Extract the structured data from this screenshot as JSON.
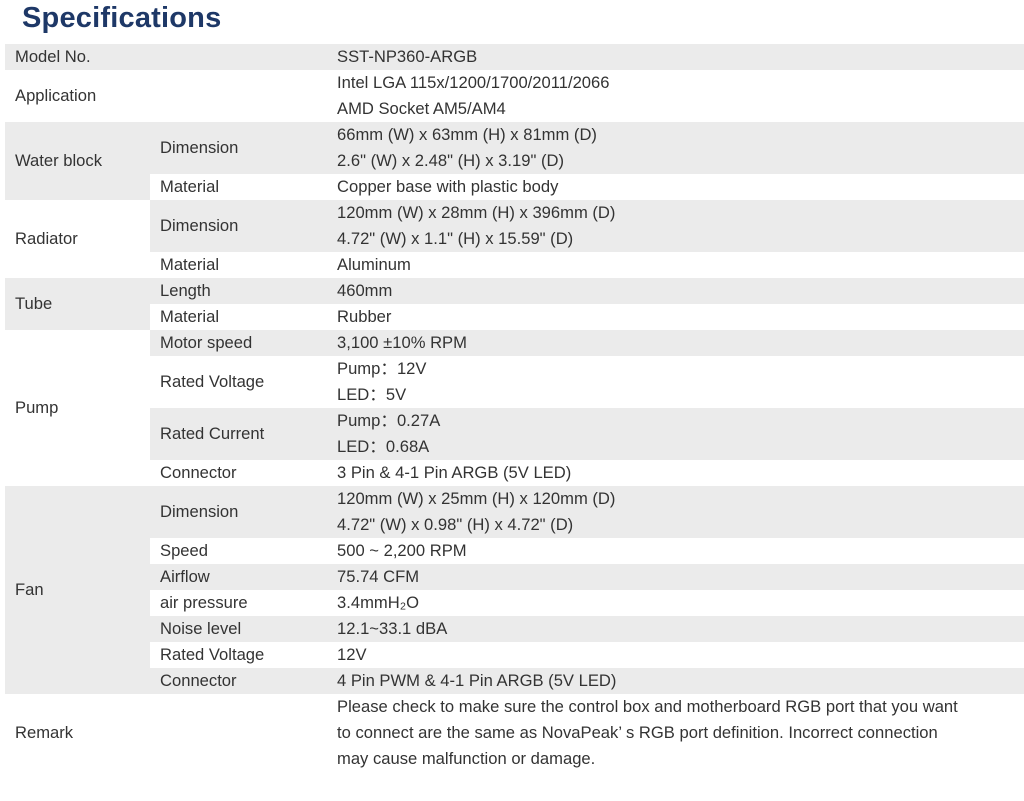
{
  "title": "Specifications",
  "colors": {
    "title": "#1e3867",
    "row_shade": "#ebebeb",
    "text": "#333333"
  },
  "groups": [
    {
      "label": "Model No.",
      "rows": [
        {
          "sub": "",
          "lines": [
            "SST-NP360-ARGB"
          ]
        }
      ]
    },
    {
      "label": "Application",
      "rows": [
        {
          "sub": "",
          "lines": [
            "Intel LGA 115x/1200/1700/2011/2066",
            "AMD Socket AM5/AM4"
          ]
        }
      ]
    },
    {
      "label": "Water block",
      "rows": [
        {
          "sub": "Dimension",
          "lines": [
            "66mm (W) x 63mm (H) x 81mm (D)",
            "2.6\" (W) x 2.48\" (H) x 3.19\" (D)"
          ]
        },
        {
          "sub": "Material",
          "lines": [
            "Copper base with plastic body"
          ]
        }
      ]
    },
    {
      "label": "Radiator",
      "rows": [
        {
          "sub": "Dimension",
          "lines": [
            "120mm (W) x 28mm (H) x 396mm (D)",
            "4.72\" (W) x 1.1\" (H) x 15.59\" (D)"
          ]
        },
        {
          "sub": "Material",
          "lines": [
            "Aluminum"
          ]
        }
      ]
    },
    {
      "label": "Tube",
      "rows": [
        {
          "sub": "Length",
          "lines": [
            "460mm"
          ]
        },
        {
          "sub": "Material",
          "lines": [
            "Rubber"
          ]
        }
      ]
    },
    {
      "label": "Pump",
      "rows": [
        {
          "sub": "Motor speed",
          "lines": [
            "3,100 ±10% RPM"
          ]
        },
        {
          "sub": "Rated Voltage",
          "lines": [
            "Pump：12V",
            "LED：5V"
          ]
        },
        {
          "sub": "Rated Current",
          "lines": [
            "Pump：0.27A",
            "LED：0.68A"
          ]
        },
        {
          "sub": "Connector",
          "lines": [
            "3 Pin & 4-1 Pin ARGB (5V LED)"
          ]
        }
      ]
    },
    {
      "label": "Fan",
      "rows": [
        {
          "sub": "Dimension",
          "lines": [
            "120mm (W) x 25mm (H) x 120mm (D)",
            "4.72\" (W) x 0.98\" (H) x 4.72\" (D)"
          ]
        },
        {
          "sub": "Speed",
          "lines": [
            "500 ~ 2,200 RPM"
          ]
        },
        {
          "sub": "Airflow",
          "lines": [
            "75.74 CFM"
          ]
        },
        {
          "sub": "air pressure",
          "lines": [
            "3.4mmH₂O"
          ]
        },
        {
          "sub": "Noise level",
          "lines": [
            "12.1~33.1 dBA"
          ]
        },
        {
          "sub": "Rated Voltage",
          "lines": [
            "12V"
          ]
        },
        {
          "sub": "Connector",
          "lines": [
            "4 Pin PWM & 4-1 Pin ARGB (5V LED)"
          ]
        }
      ]
    },
    {
      "label": "Remark",
      "rows": [
        {
          "sub": "",
          "lines": [
            "Please check to make sure the control box and motherboard RGB port that you want",
            "to connect are the same as NovaPeak’  s RGB port definition. Incorrect connection",
            "may cause malfunction or damage."
          ]
        }
      ]
    }
  ]
}
